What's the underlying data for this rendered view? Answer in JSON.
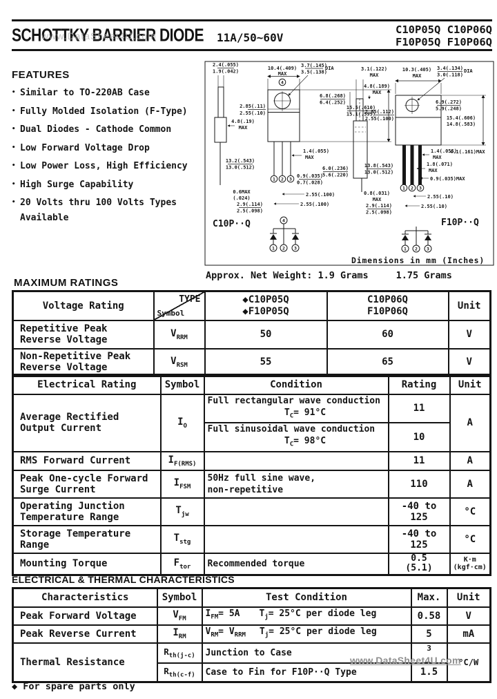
{
  "header": {
    "title": "SCHOTTKY BARRIER DIODE",
    "rating": "11A/50~60V",
    "parts_line1": "C10P05Q C10P06Q",
    "parts_line2": "F10P05Q F10P06Q",
    "watermark": "www.DataSheet4U.com"
  },
  "features": {
    "heading": "FEATURES",
    "bullet": "•",
    "items": [
      "Similar to TO-220AB Case",
      "Fully Molded Isolation (F-Type)",
      "Dual Diodes - Cathode Common",
      "Low Forward Voltage Drop",
      "Low Power Loss, High Efficiency",
      "High Surge Capability",
      "20 Volts thru 100 Volts Types"
    ],
    "last_item_cont": "Available"
  },
  "drawing": {
    "left_label": "C10P··Q",
    "right_label": "F10P··Q",
    "note": "Dimensions in mm (Inches)",
    "pins": {
      "p1": "1",
      "p2": "2",
      "p3": "3",
      "p4": "4"
    },
    "weight": {
      "label": "Approx. Net Weight:",
      "value1": "1.9 Grams",
      "value2": "1.75 Grams"
    },
    "left_dims": [
      "2.4(.055)",
      "1.9(.042)",
      "10.4(.409)",
      "MAX",
      "3.7(.145)",
      "3.5(.138)",
      "DIA",
      "6.8(.268)",
      "6.4(.252)",
      "2.85(.11)",
      "2.55(.10)",
      "15.5(.610)",
      "15.1(.595)",
      "4.8(.19)",
      "MAX",
      "1.4(.055)",
      "MAX",
      "13.2(.543)",
      "13.0(.512)",
      "0.6MAX",
      "(.024)",
      "2.9(.114)",
      "2.5(.098)",
      "6.0(.236)",
      "5.6(.220)",
      "0.9(.035)",
      "0.7(.028)",
      "2.55(.100)",
      "2.55(.100)"
    ],
    "right_dims": [
      "3.1(.122)",
      "MAX",
      "10.3(.405)",
      "MAX",
      "3.4(.134)",
      "3.0(.118)",
      "DIA",
      "4.8(.189)",
      "MAX",
      "2.85(.112)",
      "2.55(.100)",
      "6.9(.272)",
      "5.9(.248)",
      "15.4(.606)",
      "14.8(.583)",
      "1.4(.055)",
      "MAX",
      "4.1(.161)MAX",
      "1.8(.071)",
      "MAX",
      "0.9(.035)MAX",
      "13.8(.543)",
      "13.0(.512)",
      "0.8(.031)",
      "MAX",
      "2.9(.114)",
      "2.5(.098)",
      "2.55(.10)",
      "2.55(.10)"
    ]
  },
  "max_ratings": {
    "heading": "MAXIMUM RATINGS",
    "corner": {
      "type": "TYPE",
      "symbol": "Symbol"
    },
    "voltage_rating_label": "Voltage Rating",
    "type_col1_line1": "◆C10P05Q",
    "type_col1_line2": "◆F10P05Q",
    "type_col2_line1": "C10P06Q",
    "type_col2_line2": "F10P06Q",
    "unit_label": "Unit",
    "rows": [
      {
        "l1": "Repetitive Peak",
        "l2": "Reverse Voltage",
        "sym": "V~RRM~",
        "v1": "50",
        "v2": "60",
        "unit": "V"
      },
      {
        "l1": "Non-Repetitive Peak",
        "l2": "Reverse Voltage",
        "sym": "V~RSM~",
        "v1": "55",
        "v2": "65",
        "unit": "V"
      }
    ]
  },
  "electrical": {
    "headers": {
      "label": "Electrical Rating",
      "symbol": "Symbol",
      "condition": "Condition",
      "rating": "Rating",
      "unit": "Unit"
    },
    "io": {
      "l1": "Average Rectified",
      "l2": "Output Current",
      "sym": "I~O~",
      "cond_a1": "Full rectangular wave conduction",
      "cond_a2": "T~C~= 91°C",
      "rating_a": "11",
      "cond_b1": "Full sinusoidal wave conduction",
      "cond_b2": "T~C~= 98°C",
      "rating_b": "10",
      "unit": "A"
    },
    "rms": {
      "l1": "RMS Forward Current",
      "sym": "I~F(RMS)~",
      "rating": "11",
      "unit": "A"
    },
    "surge": {
      "l1": "Peak One-cycle Forward",
      "l2": "Surge Current",
      "sym": "I~FSM~",
      "cond1": "50Hz full sine wave,",
      "cond2": "non-repetitive",
      "rating": "110",
      "unit": "A"
    },
    "tjw": {
      "l1": "Operating Junction",
      "l2": "Temperature Range",
      "sym": "T~jw~",
      "rating": "-40 to 125",
      "unit": "°C"
    },
    "tstg": {
      "l1": "Storage Temperature",
      "l2": "Range",
      "sym": "T~stg~",
      "rating": "-40 to 125",
      "unit": "°C"
    },
    "torque": {
      "l1": "Mounting Torque",
      "sym": "F~tor~",
      "cond": "Recommended torque",
      "rating1": "0.5",
      "rating2": "(5.1)",
      "unit1": "K·m",
      "unit2": "(kgf·cm)"
    }
  },
  "characteristics": {
    "heading": "ELECTRICAL & THERMAL CHARACTERISTICS",
    "headers": {
      "label": "Characteristics",
      "symbol": "Symbol",
      "condition": "Test Condition",
      "max": "Max.",
      "unit": "Unit"
    },
    "vfm": {
      "label": "Peak Forward Voltage",
      "sym": "V~FM~",
      "cond1": "I~FM~= 5A",
      "cond2": "T~j~= 25°C per diode leg",
      "max": "0.58",
      "unit": "V"
    },
    "irm": {
      "label": "Peak Reverse Current",
      "sym": "I~RM~",
      "cond1": "V~RM~= V~RRM~",
      "cond2": "T~j~= 25°C per diode leg",
      "max": "5",
      "unit": "mA"
    },
    "rth": {
      "label": "Thermal Resistance",
      "sym1": "R~th(j-c)~",
      "cond_1": "Junction to Case",
      "max1": "3",
      "sym2": "R~th(c-f)~",
      "cond_2": "Case to Fin for F10P··Q Type",
      "max2": "1.5",
      "unit": "°C/W"
    },
    "watermark": "www.DataSheet4U.com"
  },
  "footer": {
    "note": "◆ For spare parts only"
  }
}
